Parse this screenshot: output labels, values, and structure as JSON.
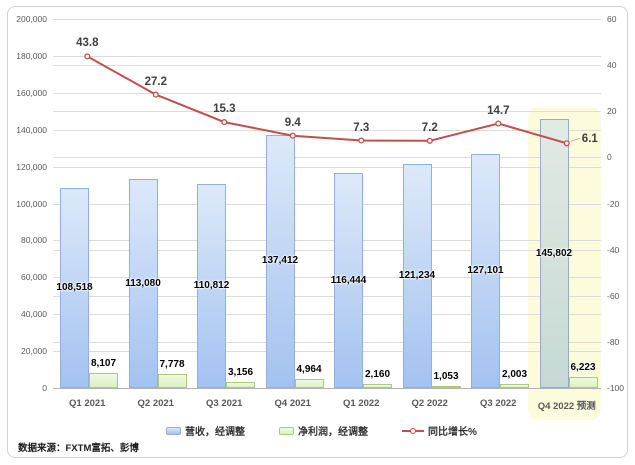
{
  "source_note": "数据来源：FXTM富拓、彭博",
  "chart_data": {
    "type": "combo-bar-line",
    "categories": [
      "Q1 2021",
      "Q2 2021",
      "Q3 2021",
      "Q4 2021",
      "Q1 2022",
      "Q2 2022",
      "Q3 2022",
      "Q4 2022 预测"
    ],
    "series": [
      {
        "name": "营收，经调整",
        "type": "bar",
        "axis": "left",
        "values": [
          108518,
          113080,
          110812,
          137412,
          116444,
          121234,
          127101,
          145802
        ],
        "labels": [
          "108,518",
          "113,080",
          "110,812",
          "137,412",
          "116,444",
          "121,234",
          "127,101",
          "145,802"
        ]
      },
      {
        "name": "净利润，经调整",
        "type": "bar",
        "axis": "left",
        "values": [
          8107,
          7778,
          3156,
          4964,
          2160,
          1053,
          2003,
          6223
        ],
        "labels": [
          "8,107",
          "7,778",
          "3,156",
          "4,964",
          "2,160",
          "1,053",
          "2,003",
          "6,223"
        ]
      },
      {
        "name": "同比增长%",
        "type": "line",
        "axis": "right",
        "values": [
          43.8,
          27.2,
          15.3,
          9.4,
          7.3,
          7.2,
          14.7,
          6.1
        ],
        "labels": [
          "43.8",
          "27.2",
          "15.3",
          "9.4",
          "7.3",
          "7.2",
          "14.7",
          "6.1"
        ]
      }
    ],
    "left_axis": {
      "min": 0,
      "max": 200000,
      "step": 20000
    },
    "right_axis": {
      "min": -100,
      "max": 60,
      "step": 20
    },
    "grid": true,
    "legend_position": "bottom",
    "highlight": {
      "category_index": 7
    },
    "colors": {
      "revenue_top": "#dde9f9",
      "revenue_bottom": "#a3c2f0",
      "revenue_border": "#90b1de",
      "profit_top": "#f1f8e3",
      "profit_bottom": "#def0c2",
      "profit_border": "#a9cb7a",
      "forecast_top": "#e2eae4",
      "forecast_bottom": "#c6d9d4",
      "forecast_border": "#93aec2",
      "line": "#c0504d",
      "marker_fill": "#fdf4f3",
      "label_dark": "#404040",
      "highlight_bg": "#fcfbdb"
    }
  }
}
